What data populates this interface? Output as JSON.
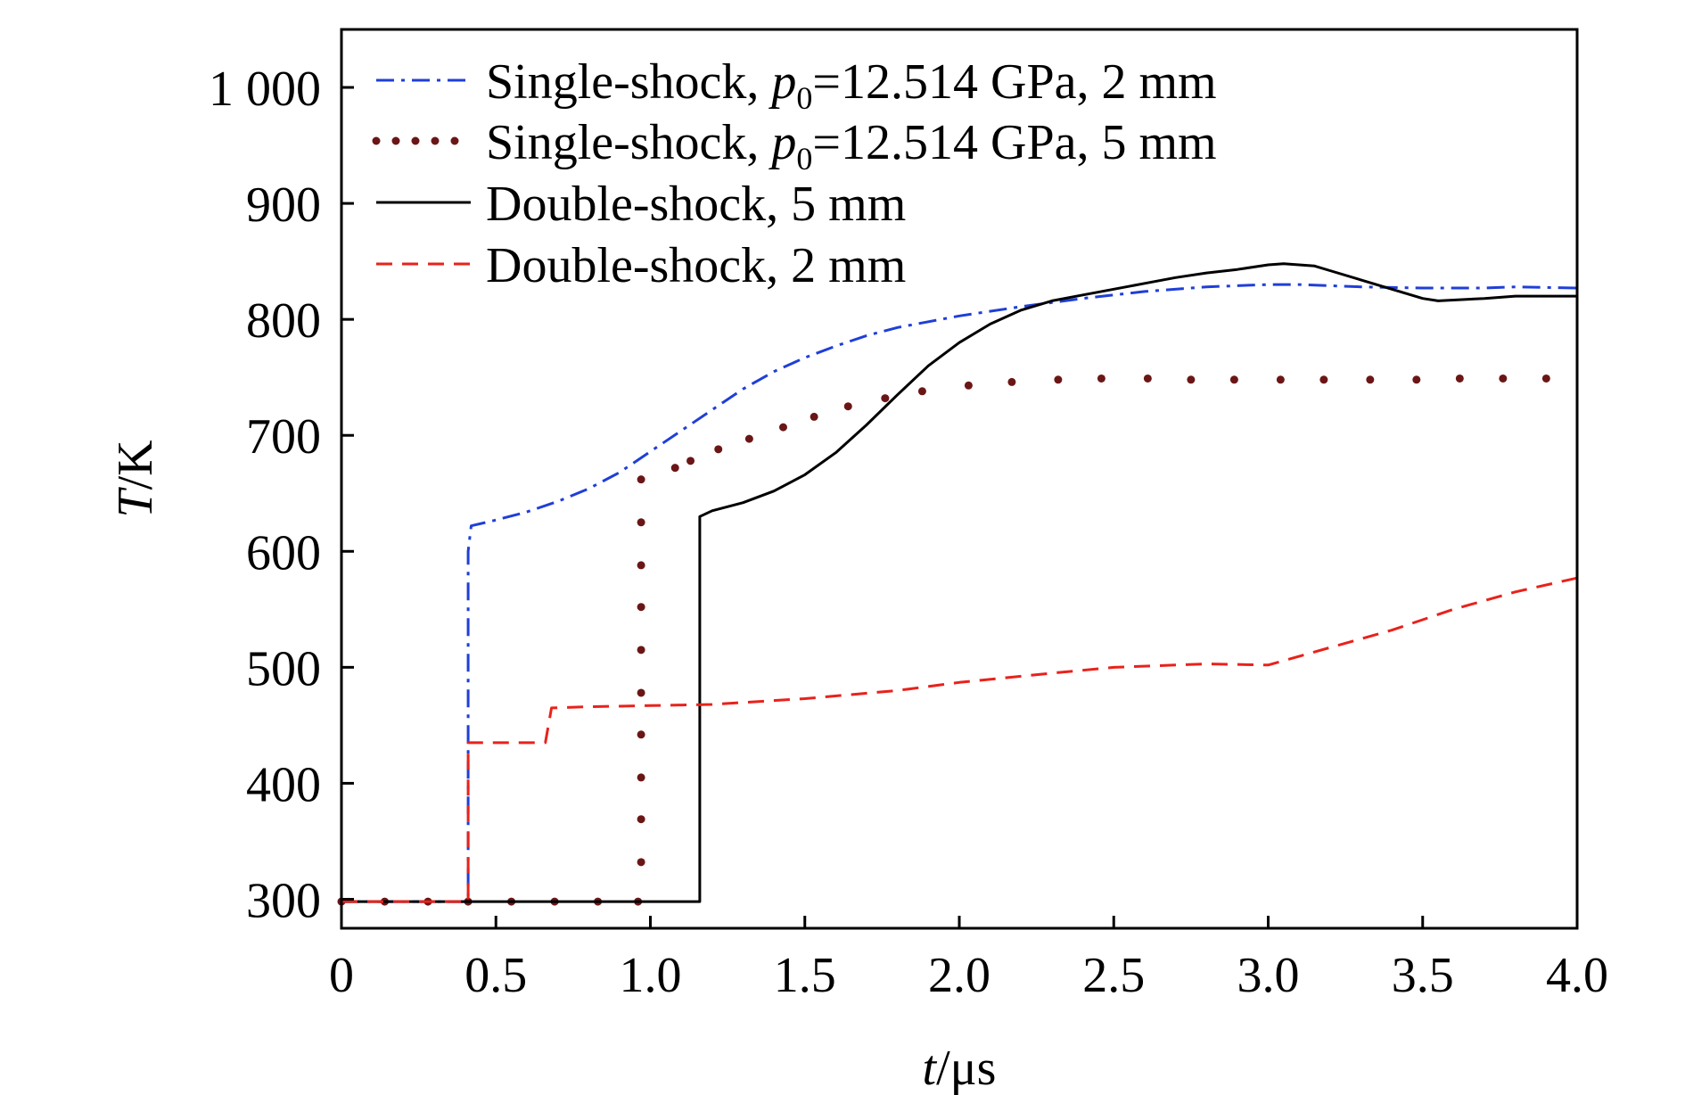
{
  "chart_data": {
    "type": "line",
    "xlabel": {
      "var": "t",
      "unit": "/μs"
    },
    "ylabel": {
      "var": "T",
      "unit": "/K"
    },
    "xlim": [
      0,
      4.0
    ],
    "ylim": [
      275,
      1050
    ],
    "xticks": [
      {
        "value": 0,
        "label": "0"
      },
      {
        "value": 0.5,
        "label": "0.5"
      },
      {
        "value": 1.0,
        "label": "1.0"
      },
      {
        "value": 1.5,
        "label": "1.5"
      },
      {
        "value": 2.0,
        "label": "2.0"
      },
      {
        "value": 2.5,
        "label": "2.5"
      },
      {
        "value": 3.0,
        "label": "3.0"
      },
      {
        "value": 3.5,
        "label": "3.5"
      },
      {
        "value": 4.0,
        "label": "4.0"
      }
    ],
    "yticks": [
      {
        "value": 300,
        "label": "300"
      },
      {
        "value": 400,
        "label": "400"
      },
      {
        "value": 500,
        "label": "500"
      },
      {
        "value": 600,
        "label": "600"
      },
      {
        "value": 700,
        "label": "700"
      },
      {
        "value": 800,
        "label": "800"
      },
      {
        "value": 900,
        "label": "900"
      },
      {
        "value": 1000,
        "label": "1 000"
      }
    ],
    "grid": false,
    "legend_position": "top",
    "series": [
      {
        "name": "Single-shock, p0=12.514 GPa, 2 mm",
        "legend_parts": [
          {
            "t": "Single-shock, ",
            "style": "normal"
          },
          {
            "t": "p",
            "style": "italic"
          },
          {
            "t": "0",
            "style": "sub"
          },
          {
            "t": "=12.514 GPa, 2 mm",
            "style": "normal"
          }
        ],
        "color": "#1f3fd8",
        "dash": "dashdot",
        "x": [
          0,
          0.41,
          0.41,
          0.42,
          0.5,
          0.6,
          0.7,
          0.8,
          0.9,
          1.0,
          1.1,
          1.2,
          1.3,
          1.4,
          1.5,
          1.6,
          1.7,
          1.8,
          1.9,
          2.0,
          2.2,
          2.4,
          2.6,
          2.8,
          3.0,
          3.1,
          3.2,
          3.3,
          3.5,
          3.7,
          3.8,
          4.0
        ],
        "y": [
          298,
          298,
          600,
          622,
          627,
          634,
          643,
          654,
          668,
          686,
          704,
          722,
          740,
          755,
          767,
          777,
          786,
          793,
          798,
          803,
          811,
          818,
          824,
          828,
          830,
          830,
          829,
          828,
          827,
          827,
          828,
          827
        ]
      },
      {
        "name": "Single-shock, p0=12.514 GPa, 5 mm",
        "legend_parts": [
          {
            "t": "Single-shock, ",
            "style": "normal"
          },
          {
            "t": "p",
            "style": "italic"
          },
          {
            "t": "0",
            "style": "sub"
          },
          {
            "t": "=12.514 GPa, 5 mm",
            "style": "normal"
          }
        ],
        "color": "#6b1616",
        "dash": "dots",
        "x": [
          0,
          0.14,
          0.28,
          0.41,
          0.55,
          0.69,
          0.83,
          0.96,
          0.97,
          0.97,
          0.97,
          0.97,
          0.97,
          0.97,
          0.97,
          0.97,
          0.97,
          0.97,
          1.08,
          1.13,
          1.22,
          1.32,
          1.43,
          1.53,
          1.64,
          1.76,
          1.88,
          2.03,
          2.17,
          2.32,
          2.46,
          2.61,
          2.75,
          2.89,
          3.04,
          3.18,
          3.33,
          3.48,
          3.62,
          3.76,
          3.9
        ],
        "y": [
          298,
          298,
          298,
          298,
          298,
          298,
          298,
          298,
          332,
          369,
          405,
          442,
          478,
          515,
          552,
          588,
          625,
          662,
          672,
          678,
          688,
          697,
          707,
          716,
          725,
          732,
          738,
          743,
          746,
          748,
          749,
          749,
          748,
          748,
          748,
          748,
          748,
          748,
          749,
          749,
          749
        ]
      },
      {
        "name": "Double-shock, 5 mm",
        "legend_parts": [
          {
            "t": "Double-shock, 5 mm",
            "style": "normal"
          }
        ],
        "color": "#000000",
        "dash": "solid",
        "x": [
          0,
          1.16,
          1.16,
          1.2,
          1.3,
          1.4,
          1.5,
          1.6,
          1.7,
          1.8,
          1.9,
          2.0,
          2.1,
          2.2,
          2.3,
          2.4,
          2.5,
          2.6,
          2.7,
          2.8,
          2.9,
          3.0,
          3.05,
          3.15,
          3.2,
          3.3,
          3.4,
          3.5,
          3.55,
          3.7,
          3.8,
          3.9,
          4.0
        ],
        "y": [
          298,
          298,
          630,
          635,
          642,
          652,
          666,
          685,
          709,
          735,
          760,
          780,
          796,
          808,
          816,
          821,
          826,
          831,
          836,
          840,
          843,
          847,
          848,
          846,
          842,
          834,
          826,
          818,
          816,
          818,
          820,
          820,
          820
        ]
      },
      {
        "name": "Double-shock, 2 mm",
        "legend_parts": [
          {
            "t": "Double-shock, 2 mm",
            "style": "normal"
          }
        ],
        "color": "#e8221b",
        "dash": "dashed",
        "x": [
          0,
          0.41,
          0.41,
          0.66,
          0.68,
          0.8,
          1.0,
          1.2,
          1.5,
          1.8,
          2.0,
          2.3,
          2.5,
          2.8,
          3.0,
          3.2,
          3.4,
          3.6,
          3.8,
          4.0
        ],
        "y": [
          298,
          298,
          435,
          435,
          465,
          466,
          467,
          468,
          473,
          480,
          487,
          495,
          500,
          503,
          502,
          517,
          532,
          550,
          565,
          577
        ]
      }
    ]
  }
}
